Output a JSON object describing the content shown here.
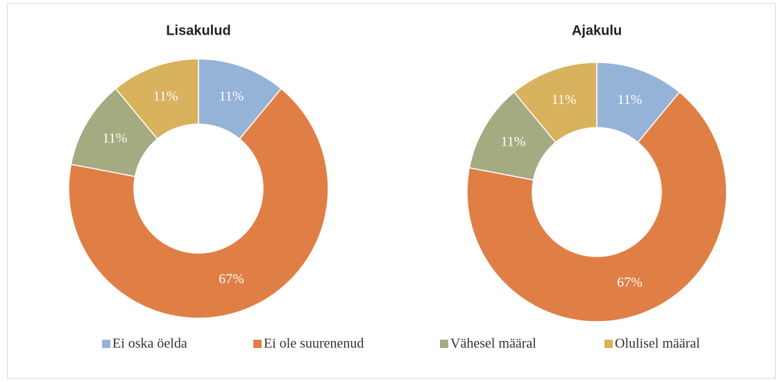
{
  "chart_data": [
    {
      "type": "pie",
      "title": "Lisakulud",
      "categories": [
        "Ei oska öelda",
        "Ei ole suurenenud",
        "Vähesel määral",
        "Olulisel määral"
      ],
      "values": [
        11,
        67,
        11,
        11
      ],
      "value_labels": [
        "11%",
        "67%",
        "11%",
        "11%"
      ],
      "colors": [
        "#95b3d7",
        "#e07f45",
        "#a5ab81",
        "#d8b25c"
      ]
    },
    {
      "type": "pie",
      "title": "Ajakulu",
      "categories": [
        "Ei oska öelda",
        "Ei ole suurenenud",
        "Vähesel määral",
        "Olulisel määral"
      ],
      "values": [
        11,
        67,
        11,
        11
      ],
      "value_labels": [
        "11%",
        "67%",
        "11%",
        "11%"
      ],
      "colors": [
        "#95b3d7",
        "#e07f45",
        "#a5ab81",
        "#d8b25c"
      ]
    }
  ]
}
